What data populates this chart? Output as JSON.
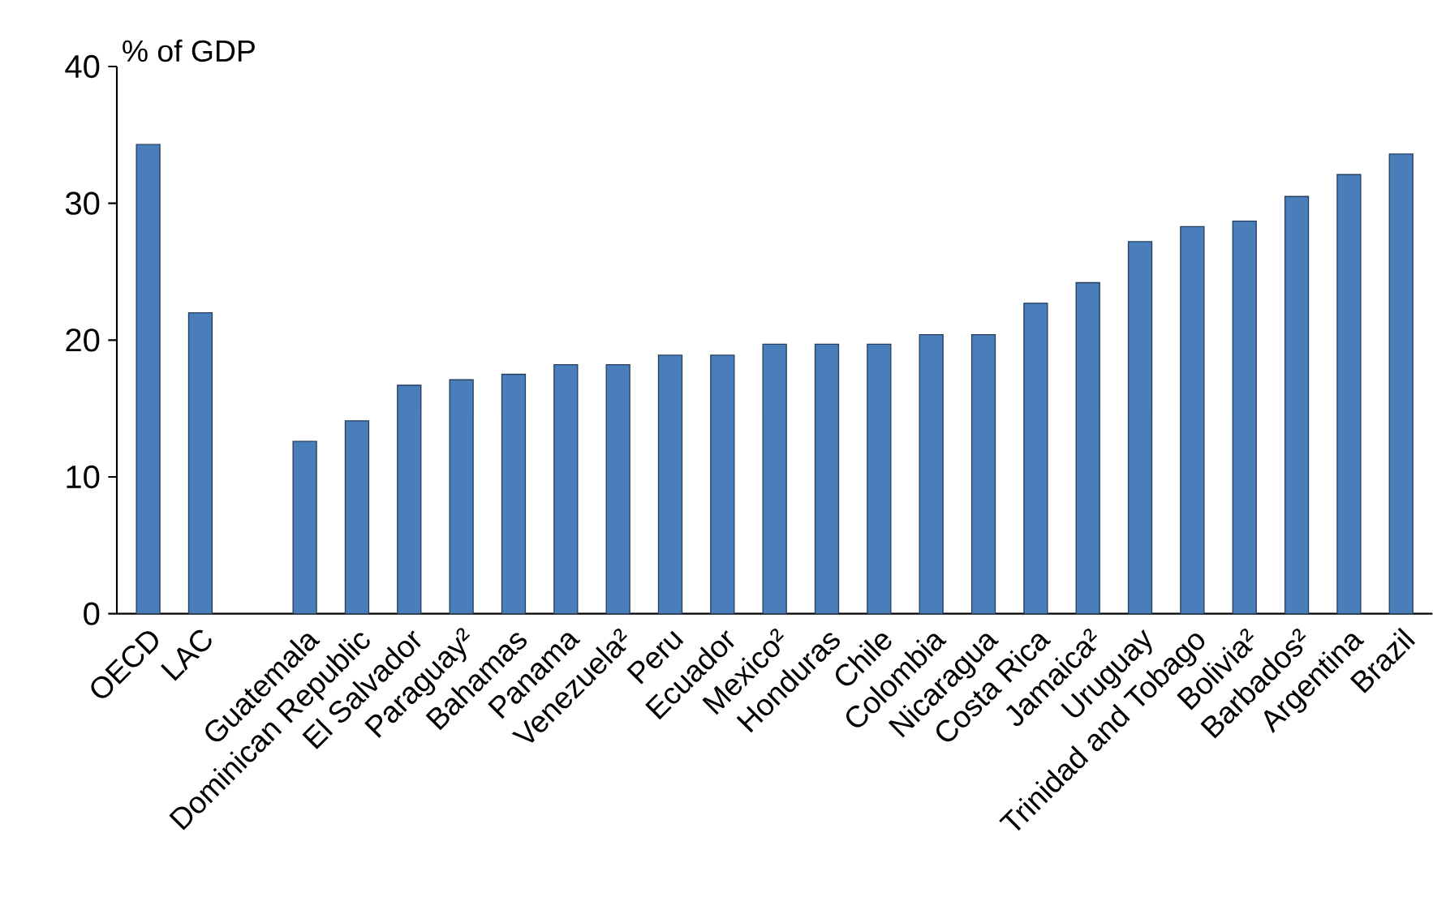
{
  "chart_data": {
    "type": "bar",
    "ylabel": "% of GDP",
    "categories": [
      "OECD",
      "LAC",
      null,
      "Guatemala",
      "Dominican Republic",
      "El Salvador",
      "Paraguay²",
      "Bahamas",
      "Panama",
      "Venezuela²",
      "Peru",
      "Ecuador",
      "Mexico²",
      "Honduras",
      "Chile",
      "Colombia",
      "Nicaragua",
      "Costa Rica",
      "Jamaica²",
      "Uruguay",
      "Trinidad and Tobago",
      "Bolivia²",
      "Barbados²",
      "Argentina",
      "Brazil"
    ],
    "values": [
      34.3,
      22.0,
      null,
      12.6,
      14.1,
      16.7,
      17.1,
      17.5,
      18.2,
      18.2,
      18.9,
      18.9,
      19.7,
      19.7,
      19.7,
      20.4,
      20.4,
      22.7,
      24.2,
      27.2,
      28.3,
      28.7,
      30.5,
      32.1,
      33.6
    ],
    "color": "#4a7ebb",
    "ylim": [
      0,
      40
    ],
    "yticks": [
      0,
      10,
      20,
      30,
      40
    ]
  }
}
